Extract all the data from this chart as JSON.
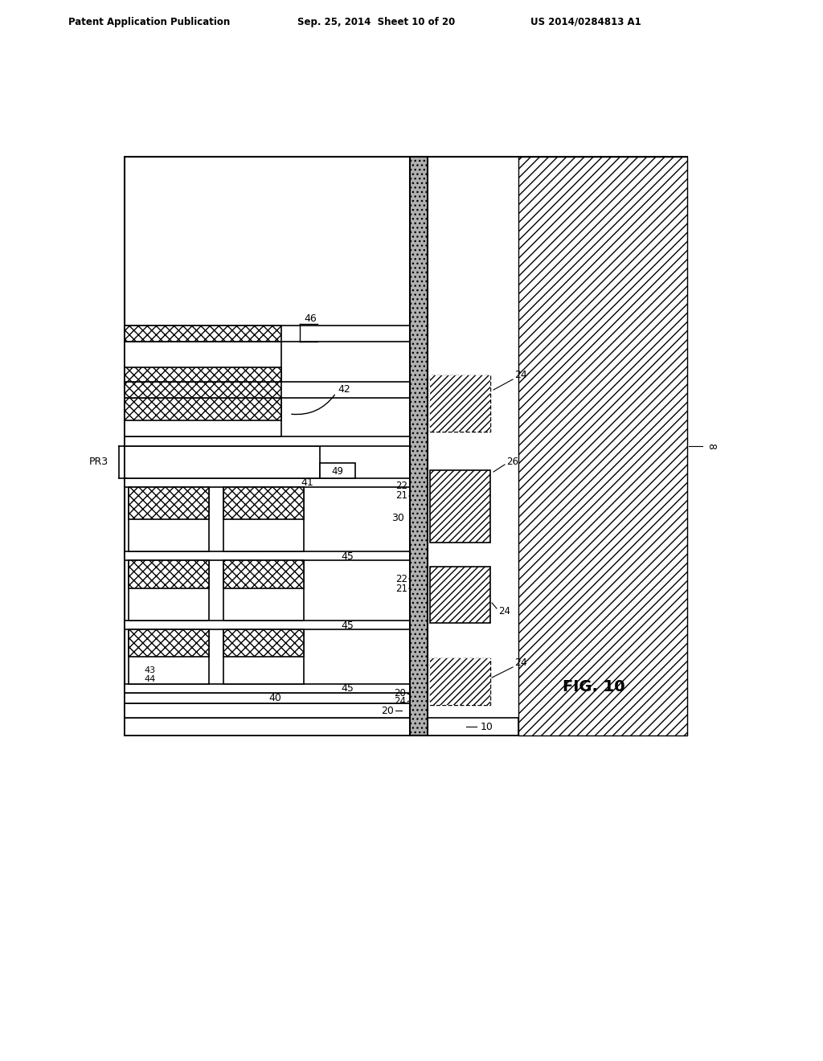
{
  "bg_color": "#ffffff",
  "header_text": "Patent Application Publication",
  "header_date": "Sep. 25, 2014  Sheet 10 of 20",
  "header_patent": "US 2014/0284813 A1",
  "fig_label": "FIG. 10",
  "line_color": "#000000"
}
